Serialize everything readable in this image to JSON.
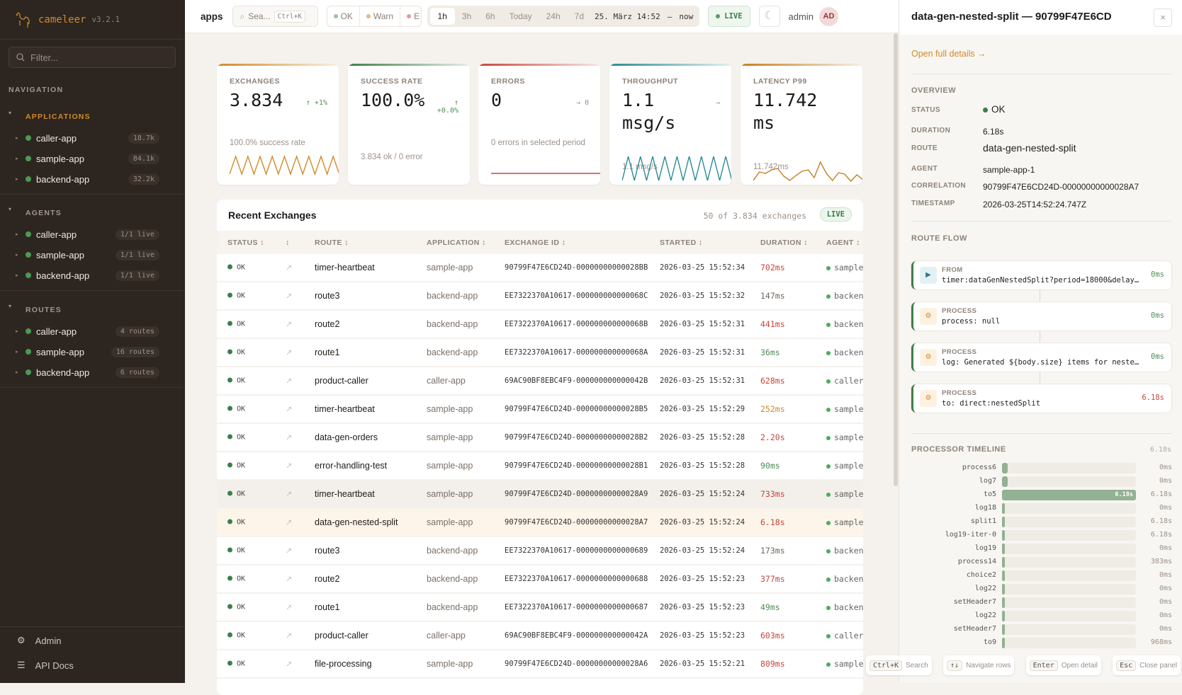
{
  "brand": {
    "name": "cameleer",
    "version": "v3.2.1",
    "logo_icon": "camel-icon"
  },
  "sidebar": {
    "filter_placeholder": "Filter...",
    "nav_label": "NAVIGATION",
    "groups": [
      {
        "label": "APPLICATIONS",
        "items": [
          {
            "name": "caller-app",
            "badge": "18.7k"
          },
          {
            "name": "sample-app",
            "badge": "84.1k"
          },
          {
            "name": "backend-app",
            "badge": "32.2k"
          }
        ]
      },
      {
        "label": "AGENTS",
        "items": [
          {
            "name": "caller-app",
            "badge": "1/1 live"
          },
          {
            "name": "sample-app",
            "badge": "1/1 live"
          },
          {
            "name": "backend-app",
            "badge": "1/1 live"
          }
        ]
      },
      {
        "label": "ROUTES",
        "items": [
          {
            "name": "caller-app",
            "badge": "4 routes"
          },
          {
            "name": "sample-app",
            "badge": "16 routes"
          },
          {
            "name": "backend-app",
            "badge": "6 routes"
          }
        ]
      }
    ],
    "footer": [
      {
        "label": "Admin",
        "icon": "gear-icon"
      },
      {
        "label": "API Docs",
        "icon": "menu-icon"
      }
    ]
  },
  "topbar": {
    "breadcrumb": "apps",
    "search_placeholder": "Sea...",
    "search_shortcut": "Ctrl+K",
    "status_filters": [
      {
        "label": "OK",
        "color": "#9cc3a0"
      },
      {
        "label": "Warn",
        "color": "#e3b884"
      },
      {
        "label": "E",
        "color": "#e39a9a"
      }
    ],
    "time_ranges": [
      "1h",
      "3h",
      "6h",
      "Today",
      "24h",
      "7d"
    ],
    "active_range": "1h",
    "range_from": "25. März 14:52",
    "range_sep": "—",
    "range_to": "now",
    "live": "LIVE",
    "user": "admin",
    "avatar": "AD"
  },
  "kpis": [
    {
      "label": "EXCHANGES",
      "value": "3.834",
      "trend": "↑ +1%",
      "trend_color": "#4f8d58",
      "sub": "100.0% success rate",
      "color": "#d18a2a"
    },
    {
      "label": "SUCCESS RATE",
      "value": "100.0%",
      "trend": "↑\n+0.0%",
      "trend_color": "#4f8d58",
      "sub": "3.834 ok / 0 error",
      "color": "#3d7f48"
    },
    {
      "label": "ERRORS",
      "value": "0",
      "trend": "→ 0",
      "trend_color": "#9a9088",
      "sub": "0 errors in selected period",
      "color": "#c9453d"
    },
    {
      "label": "THROUGHPUT",
      "value": "1.1 msg/s",
      "trend": "→",
      "trend_color": "#9a9088",
      "sub": "1.1 msg/s",
      "color": "#2a8a96"
    },
    {
      "label": "LATENCY P99",
      "value": "11.742 ms",
      "trend": "",
      "trend_color": "#9a9088",
      "sub": "11.742ms",
      "color": "#c57f22"
    }
  ],
  "table": {
    "title": "Recent Exchanges",
    "count": "50 of 3.834 exchanges",
    "live": "LIVE",
    "columns": [
      "STATUS ↕",
      "↕",
      "ROUTE ↕",
      "APPLICATION ↕",
      "EXCHANGE ID ↕",
      "STARTED ↕",
      "DURATION ↕",
      "AGENT ↕"
    ],
    "rows": [
      {
        "status": "OK",
        "route": "timer-heartbeat",
        "app": "sample-app",
        "id": "90799F47E6CD24D-00000000000028BB",
        "started": "2026-03-25 15:52:34",
        "duration": "702ms",
        "tone": "red",
        "agent": "sample"
      },
      {
        "status": "OK",
        "route": "route3",
        "app": "backend-app",
        "id": "EE7322370A10617-000000000000068C",
        "started": "2026-03-25 15:52:32",
        "duration": "147ms",
        "tone": "gray",
        "agent": "backend"
      },
      {
        "status": "OK",
        "route": "route2",
        "app": "backend-app",
        "id": "EE7322370A10617-000000000000068B",
        "started": "2026-03-25 15:52:31",
        "duration": "441ms",
        "tone": "red",
        "agent": "backend"
      },
      {
        "status": "OK",
        "route": "route1",
        "app": "backend-app",
        "id": "EE7322370A10617-000000000000068A",
        "started": "2026-03-25 15:52:31",
        "duration": "36ms",
        "tone": "green",
        "agent": "backend"
      },
      {
        "status": "OK",
        "route": "product-caller",
        "app": "caller-app",
        "id": "69AC90BF8EBC4F9-000000000000042B",
        "started": "2026-03-25 15:52:31",
        "duration": "628ms",
        "tone": "red",
        "agent": "caller"
      },
      {
        "status": "OK",
        "route": "timer-heartbeat",
        "app": "sample-app",
        "id": "90799F47E6CD24D-00000000000028B5",
        "started": "2026-03-25 15:52:29",
        "duration": "252ms",
        "tone": "orange",
        "agent": "sample"
      },
      {
        "status": "OK",
        "route": "data-gen-orders",
        "app": "sample-app",
        "id": "90799F47E6CD24D-00000000000028B2",
        "started": "2026-03-25 15:52:28",
        "duration": "2.20s",
        "tone": "red",
        "agent": "sample"
      },
      {
        "status": "OK",
        "route": "error-handling-test",
        "app": "sample-app",
        "id": "90799F47E6CD24D-00000000000028B1",
        "started": "2026-03-25 15:52:28",
        "duration": "90ms",
        "tone": "green",
        "agent": "sample"
      },
      {
        "status": "OK",
        "route": "timer-heartbeat",
        "app": "sample-app",
        "id": "90799F47E6CD24D-00000000000028A9",
        "started": "2026-03-25 15:52:24",
        "duration": "733ms",
        "tone": "red",
        "agent": "sample",
        "state": "hover"
      },
      {
        "status": "OK",
        "route": "data-gen-nested-split",
        "app": "sample-app",
        "id": "90799F47E6CD24D-00000000000028A7",
        "started": "2026-03-25 15:52:24",
        "duration": "6.18s",
        "tone": "red",
        "agent": "sample",
        "state": "selected"
      },
      {
        "status": "OK",
        "route": "route3",
        "app": "backend-app",
        "id": "EE7322370A10617-0000000000000689",
        "started": "2026-03-25 15:52:24",
        "duration": "173ms",
        "tone": "gray",
        "agent": "backend"
      },
      {
        "status": "OK",
        "route": "route2",
        "app": "backend-app",
        "id": "EE7322370A10617-0000000000000688",
        "started": "2026-03-25 15:52:23",
        "duration": "377ms",
        "tone": "red",
        "agent": "backend"
      },
      {
        "status": "OK",
        "route": "route1",
        "app": "backend-app",
        "id": "EE7322370A10617-0000000000000687",
        "started": "2026-03-25 15:52:23",
        "duration": "49ms",
        "tone": "green",
        "agent": "backend"
      },
      {
        "status": "OK",
        "route": "product-caller",
        "app": "caller-app",
        "id": "69AC90BF8EBC4F9-000000000000042A",
        "started": "2026-03-25 15:52:23",
        "duration": "603ms",
        "tone": "red",
        "agent": "caller"
      },
      {
        "status": "OK",
        "route": "file-processing",
        "app": "sample-app",
        "id": "90799F47E6CD24D-00000000000028A6",
        "started": "2026-03-25 15:52:21",
        "duration": "809ms",
        "tone": "red",
        "agent": "sample"
      }
    ]
  },
  "tones": {
    "red": "#c9453d",
    "orange": "#d18a2a",
    "gray": "#6f665f",
    "green": "#4f8d58"
  },
  "panel": {
    "title": "data-gen-nested-split — 90799F47E6CD",
    "close": "×",
    "open_link": "Open full details →",
    "overview_label": "OVERVIEW",
    "fields": [
      {
        "label": "STATUS",
        "value": "OK"
      },
      {
        "label": "DURATION",
        "value": "6.18s"
      },
      {
        "label": "ROUTE",
        "value": "data-gen-nested-split"
      },
      {
        "label": "AGENT",
        "value": "sample-app-1"
      },
      {
        "label": "CORRELATION",
        "value": "90799F47E6CD24D-00000000000028A7"
      },
      {
        "label": "TIMESTAMP",
        "value": "2026-03-25T14:52:24.747Z"
      }
    ],
    "flow_label": "ROUTE FLOW",
    "flow": [
      {
        "kind": "FROM",
        "text": "timer:dataGenNestedSplit?period=18000&delay=40…",
        "duration": "0ms",
        "tone": "green",
        "icon": "play-icon"
      },
      {
        "kind": "PROCESS",
        "text": "process: null",
        "duration": "0ms",
        "tone": "green",
        "icon": "gear-icon"
      },
      {
        "kind": "PROCESS",
        "text": "log: Generated ${body.size} items for nested  …",
        "duration": "0ms",
        "tone": "green",
        "icon": "gear-icon"
      },
      {
        "kind": "PROCESS",
        "text": "to: direct:nestedSplit",
        "duration": "6.18s",
        "tone": "red",
        "icon": "gear-icon"
      }
    ],
    "timeline_label": "PROCESSOR TIMELINE",
    "timeline_total": "6.18s",
    "timeline": [
      {
        "name": "process6",
        "value": "0ms",
        "fill": 0.04
      },
      {
        "name": "log7",
        "value": "0ms",
        "fill": 0.04
      },
      {
        "name": "to5",
        "value": "6.18s",
        "fill": 1.0,
        "bar_label": "6.18s"
      },
      {
        "name": "log18",
        "value": "0ms",
        "fill": 0
      },
      {
        "name": "split1",
        "value": "6.18s",
        "fill": 0
      },
      {
        "name": "log19-iter-0",
        "value": "6.18s",
        "fill": 0
      },
      {
        "name": "log19",
        "value": "0ms",
        "fill": 0
      },
      {
        "name": "process14",
        "value": "383ms",
        "fill": 0
      },
      {
        "name": "choice2",
        "value": "0ms",
        "fill": 0
      },
      {
        "name": "log22",
        "value": "0ms",
        "fill": 0
      },
      {
        "name": "setHeader7",
        "value": "0ms",
        "fill": 0
      },
      {
        "name": "log22",
        "value": "0ms",
        "fill": 0
      },
      {
        "name": "setHeader7",
        "value": "0ms",
        "fill": 0
      },
      {
        "name": "to9",
        "value": "968ms",
        "fill": 0
      }
    ]
  },
  "shortcuts": [
    {
      "key": "Ctrl+K",
      "label": "Search"
    },
    {
      "key": "↑↓",
      "label": "Navigate rows"
    },
    {
      "key": "Enter",
      "label": "Open detail"
    },
    {
      "key": "Esc",
      "label": "Close panel"
    }
  ]
}
